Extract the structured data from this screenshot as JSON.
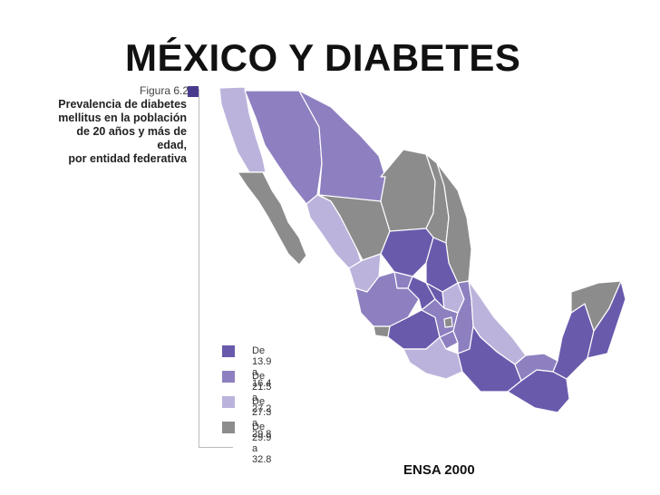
{
  "slide": {
    "title": "MÉXICO Y DIABETES",
    "figure_label": "Figura 6.2",
    "caption_lines": [
      "Prevalencia de diabetes",
      "mellitus en la población",
      "de 20 años y más de edad,",
      "por entidad federativa"
    ],
    "source": "ENSA 2000"
  },
  "legend": [
    {
      "label": "De 13.9 a 16.4",
      "color": "#6a5aac"
    },
    {
      "label": "De 21.5 a 27.2",
      "color": "#8e80c0"
    },
    {
      "label": "De 27.3 a 29.8",
      "color": "#bcb3dc"
    },
    {
      "label": "De 29.9 a 32.8",
      "color": "#8c8c8c"
    }
  ]
}
